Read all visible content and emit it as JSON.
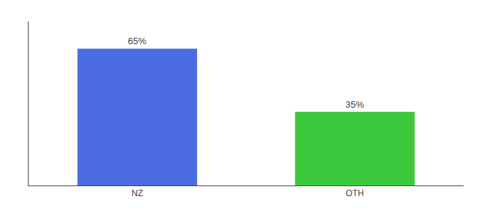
{
  "chart_data": {
    "type": "bar",
    "categories": [
      "NZ",
      "OTH"
    ],
    "values": [
      65,
      35
    ],
    "value_labels": [
      "65%",
      "35%"
    ],
    "colors": [
      "#4B6BE0",
      "#3DC93D"
    ],
    "ylim": [
      0,
      78
    ],
    "yticks": [],
    "grid": false,
    "data_labels": true,
    "tick_labels": "x"
  }
}
